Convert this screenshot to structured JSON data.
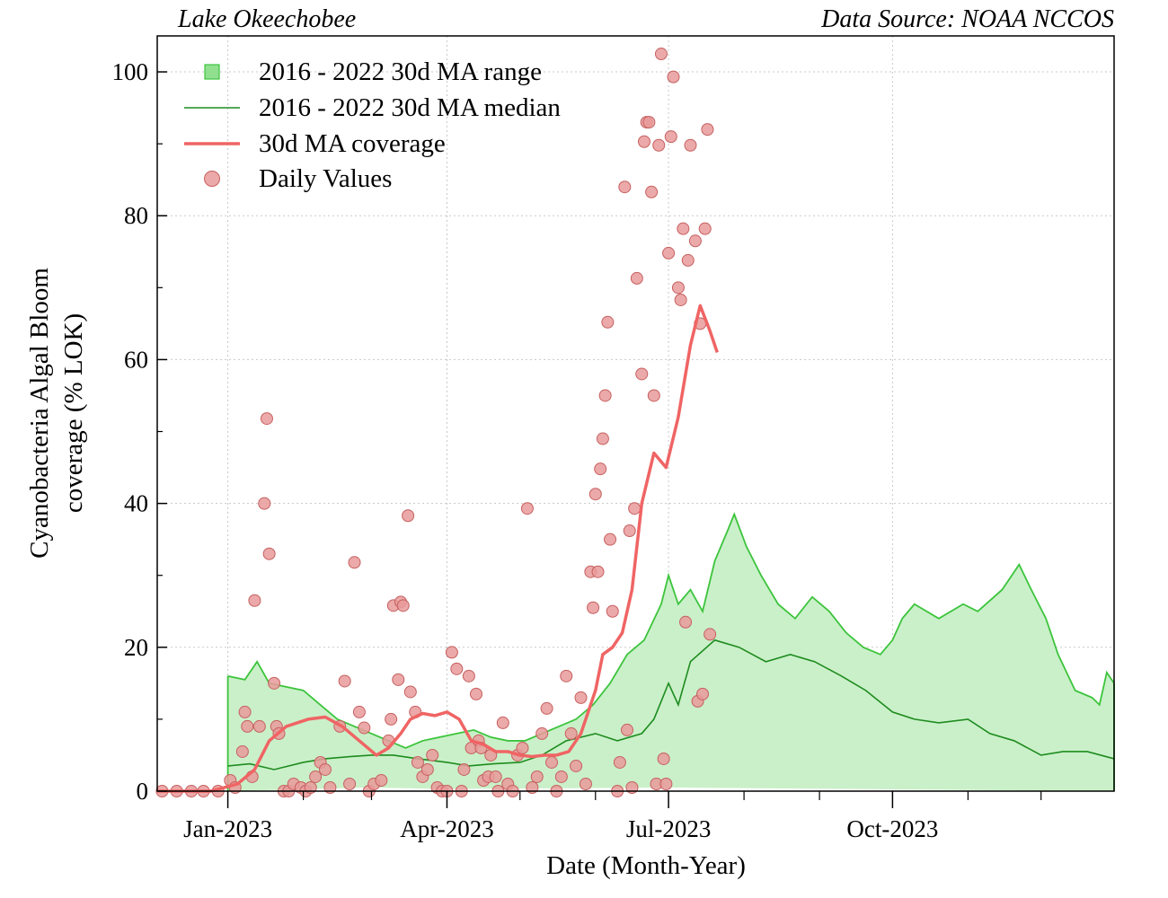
{
  "header": {
    "left": "Lake Okeechobee",
    "right": "Data Source: NOAA NCCOS"
  },
  "chart_data": {
    "type": "line",
    "xlabel": "Date (Month-Year)",
    "ylabel_line1": "Cyanobacteria Algal Bloom",
    "ylabel_line2": "coverage (% LOK)",
    "xlim": [
      "2022-12-03",
      "2023-12-31"
    ],
    "ylim": [
      0,
      105
    ],
    "yticks": [
      0,
      20,
      40,
      60,
      80,
      100
    ],
    "yticks_minor": [
      10,
      30,
      50,
      70,
      90
    ],
    "xticks": [
      {
        "date": "2023-01-01",
        "label": "Jan-2023"
      },
      {
        "date": "2023-04-01",
        "label": "Apr-2023"
      },
      {
        "date": "2023-07-01",
        "label": "Jul-2023"
      },
      {
        "date": "2023-10-01",
        "label": "Oct-2023"
      }
    ],
    "xticks_minor": [
      "2023-02-01",
      "2023-03-01",
      "2023-05-01",
      "2023-06-01",
      "2023-08-01",
      "2023-09-01",
      "2023-11-01",
      "2023-12-01"
    ],
    "grid": true,
    "legend_position": "top-left",
    "colors": {
      "range_fill": "#caf0c9",
      "range_edge": "#3cc43c",
      "median": "#1e8c1e",
      "ma_line": "#f06464",
      "points_fill": "#e99a9a",
      "points_edge": "#c66060"
    },
    "legend": [
      {
        "label": "2016 - 2022 30d MA range",
        "kind": "square"
      },
      {
        "label": "2016 - 2022 30d MA median",
        "kind": "thin-line"
      },
      {
        "label": "30d MA coverage",
        "kind": "thick-line"
      },
      {
        "label": "Daily Values",
        "kind": "circle"
      }
    ],
    "range_upper": [
      [
        "2023-01-01",
        16
      ],
      [
        "2023-01-08",
        15.5
      ],
      [
        "2023-01-13",
        18
      ],
      [
        "2023-01-18",
        15
      ],
      [
        "2023-01-25",
        14.5
      ],
      [
        "2023-02-01",
        14
      ],
      [
        "2023-02-08",
        12
      ],
      [
        "2023-02-15",
        10
      ],
      [
        "2023-02-22",
        9
      ],
      [
        "2023-03-01",
        8
      ],
      [
        "2023-03-08",
        7
      ],
      [
        "2023-03-15",
        6
      ],
      [
        "2023-03-22",
        7
      ],
      [
        "2023-03-29",
        7.5
      ],
      [
        "2023-04-05",
        8
      ],
      [
        "2023-04-12",
        8.5
      ],
      [
        "2023-04-19",
        7.5
      ],
      [
        "2023-04-26",
        7
      ],
      [
        "2023-05-03",
        7
      ],
      [
        "2023-05-10",
        8
      ],
      [
        "2023-05-17",
        9
      ],
      [
        "2023-05-24",
        10
      ],
      [
        "2023-05-31",
        12
      ],
      [
        "2023-06-07",
        15
      ],
      [
        "2023-06-14",
        19
      ],
      [
        "2023-06-21",
        21
      ],
      [
        "2023-06-28",
        26
      ],
      [
        "2023-07-01",
        30
      ],
      [
        "2023-07-05",
        26
      ],
      [
        "2023-07-10",
        28
      ],
      [
        "2023-07-15",
        25
      ],
      [
        "2023-07-20",
        32
      ],
      [
        "2023-07-25",
        36
      ],
      [
        "2023-07-28",
        38.5
      ],
      [
        "2023-08-02",
        34
      ],
      [
        "2023-08-08",
        30
      ],
      [
        "2023-08-15",
        26
      ],
      [
        "2023-08-22",
        24
      ],
      [
        "2023-08-29",
        27
      ],
      [
        "2023-09-05",
        25
      ],
      [
        "2023-09-12",
        22
      ],
      [
        "2023-09-19",
        20
      ],
      [
        "2023-09-26",
        19
      ],
      [
        "2023-10-01",
        21
      ],
      [
        "2023-10-05",
        24
      ],
      [
        "2023-10-10",
        26
      ],
      [
        "2023-10-20",
        24
      ],
      [
        "2023-10-30",
        26
      ],
      [
        "2023-11-05",
        25
      ],
      [
        "2023-11-15",
        28
      ],
      [
        "2023-11-22",
        31.5
      ],
      [
        "2023-11-27",
        28
      ],
      [
        "2023-12-03",
        24
      ],
      [
        "2023-12-08",
        19
      ],
      [
        "2023-12-15",
        14
      ],
      [
        "2023-12-22",
        13
      ],
      [
        "2023-12-25",
        12
      ],
      [
        "2023-12-28",
        16.5
      ],
      [
        "2023-12-31",
        15
      ]
    ],
    "range_lower": [
      [
        "2023-01-01",
        0
      ],
      [
        "2023-03-01",
        0.5
      ],
      [
        "2023-04-01",
        0.3
      ],
      [
        "2023-07-01",
        0.5
      ],
      [
        "2023-12-31",
        0
      ]
    ],
    "median": [
      [
        "2023-01-01",
        3.5
      ],
      [
        "2023-01-10",
        3.8
      ],
      [
        "2023-01-20",
        3
      ],
      [
        "2023-02-01",
        4
      ],
      [
        "2023-02-10",
        4.5
      ],
      [
        "2023-02-20",
        4.8
      ],
      [
        "2023-03-01",
        5
      ],
      [
        "2023-03-10",
        5
      ],
      [
        "2023-03-20",
        4.5
      ],
      [
        "2023-04-01",
        4
      ],
      [
        "2023-04-10",
        3.5
      ],
      [
        "2023-04-20",
        3.8
      ],
      [
        "2023-05-01",
        4
      ],
      [
        "2023-05-10",
        5
      ],
      [
        "2023-05-20",
        7
      ],
      [
        "2023-06-01",
        8
      ],
      [
        "2023-06-10",
        7
      ],
      [
        "2023-06-20",
        8
      ],
      [
        "2023-06-25",
        10
      ],
      [
        "2023-07-01",
        15
      ],
      [
        "2023-07-05",
        12
      ],
      [
        "2023-07-10",
        18
      ],
      [
        "2023-07-20",
        21
      ],
      [
        "2023-07-30",
        20
      ],
      [
        "2023-08-10",
        18
      ],
      [
        "2023-08-20",
        19
      ],
      [
        "2023-08-30",
        18
      ],
      [
        "2023-09-10",
        16
      ],
      [
        "2023-09-20",
        14
      ],
      [
        "2023-10-01",
        11
      ],
      [
        "2023-10-10",
        10
      ],
      [
        "2023-10-20",
        9.5
      ],
      [
        "2023-11-01",
        10
      ],
      [
        "2023-11-10",
        8
      ],
      [
        "2023-11-20",
        7
      ],
      [
        "2023-12-01",
        5
      ],
      [
        "2023-12-10",
        5.5
      ],
      [
        "2023-12-20",
        5.5
      ],
      [
        "2023-12-31",
        4.5
      ]
    ],
    "ma_line": [
      [
        "2022-12-03",
        0
      ],
      [
        "2022-12-25",
        0
      ],
      [
        "2023-01-05",
        1
      ],
      [
        "2023-01-12",
        3
      ],
      [
        "2023-01-18",
        7
      ],
      [
        "2023-01-25",
        9
      ],
      [
        "2023-02-03",
        10
      ],
      [
        "2023-02-10",
        10.3
      ],
      [
        "2023-02-17",
        9
      ],
      [
        "2023-02-24",
        7
      ],
      [
        "2023-03-03",
        5
      ],
      [
        "2023-03-08",
        6
      ],
      [
        "2023-03-13",
        8
      ],
      [
        "2023-03-17",
        10
      ],
      [
        "2023-03-22",
        10.8
      ],
      [
        "2023-03-27",
        10.5
      ],
      [
        "2023-04-01",
        11
      ],
      [
        "2023-04-06",
        10
      ],
      [
        "2023-04-11",
        7
      ],
      [
        "2023-04-16",
        6.5
      ],
      [
        "2023-04-21",
        5.5
      ],
      [
        "2023-04-26",
        5.5
      ],
      [
        "2023-05-01",
        5
      ],
      [
        "2023-05-06",
        4.8
      ],
      [
        "2023-05-11",
        5
      ],
      [
        "2023-05-16",
        5
      ],
      [
        "2023-05-21",
        5.5
      ],
      [
        "2023-05-26",
        8
      ],
      [
        "2023-06-01",
        14
      ],
      [
        "2023-06-04",
        19
      ],
      [
        "2023-06-08",
        20
      ],
      [
        "2023-06-12",
        22
      ],
      [
        "2023-06-16",
        28
      ],
      [
        "2023-06-20",
        40
      ],
      [
        "2023-06-25",
        47
      ],
      [
        "2023-06-30",
        45
      ],
      [
        "2023-07-05",
        52
      ],
      [
        "2023-07-10",
        62
      ],
      [
        "2023-07-14",
        67.5
      ],
      [
        "2023-07-18",
        64
      ],
      [
        "2023-07-21",
        61
      ]
    ],
    "daily_values": [
      [
        "2022-12-05",
        0
      ],
      [
        "2022-12-11",
        0
      ],
      [
        "2022-12-17",
        0
      ],
      [
        "2022-12-22",
        0
      ],
      [
        "2022-12-28",
        0
      ],
      [
        "2023-01-02",
        1.5
      ],
      [
        "2023-01-04",
        0.5
      ],
      [
        "2023-01-07",
        5.5
      ],
      [
        "2023-01-08",
        11
      ],
      [
        "2023-01-09",
        9
      ],
      [
        "2023-01-11",
        2
      ],
      [
        "2023-01-12",
        26.5
      ],
      [
        "2023-01-14",
        9
      ],
      [
        "2023-01-16",
        40
      ],
      [
        "2023-01-17",
        51.8
      ],
      [
        "2023-01-18",
        33
      ],
      [
        "2023-01-20",
        15
      ],
      [
        "2023-01-21",
        9
      ],
      [
        "2023-01-22",
        8
      ],
      [
        "2023-01-24",
        0
      ],
      [
        "2023-01-26",
        0
      ],
      [
        "2023-01-28",
        1
      ],
      [
        "2023-01-31",
        0.5
      ],
      [
        "2023-02-02",
        0
      ],
      [
        "2023-02-04",
        0.5
      ],
      [
        "2023-02-06",
        2
      ],
      [
        "2023-02-08",
        4
      ],
      [
        "2023-02-10",
        3
      ],
      [
        "2023-02-12",
        0.5
      ],
      [
        "2023-02-16",
        9
      ],
      [
        "2023-02-18",
        15.3
      ],
      [
        "2023-02-20",
        1
      ],
      [
        "2023-02-22",
        31.8
      ],
      [
        "2023-02-24",
        11
      ],
      [
        "2023-02-26",
        8.8
      ],
      [
        "2023-02-28",
        0
      ],
      [
        "2023-03-02",
        1
      ],
      [
        "2023-03-05",
        1.5
      ],
      [
        "2023-03-08",
        7
      ],
      [
        "2023-03-09",
        10
      ],
      [
        "2023-03-10",
        25.8
      ],
      [
        "2023-03-12",
        15.5
      ],
      [
        "2023-03-13",
        26.3
      ],
      [
        "2023-03-14",
        25.8
      ],
      [
        "2023-03-16",
        38.3
      ],
      [
        "2023-03-17",
        13.8
      ],
      [
        "2023-03-19",
        11
      ],
      [
        "2023-03-20",
        4
      ],
      [
        "2023-03-22",
        2
      ],
      [
        "2023-03-24",
        3
      ],
      [
        "2023-03-26",
        5
      ],
      [
        "2023-03-28",
        0.5
      ],
      [
        "2023-03-30",
        0
      ],
      [
        "2023-04-01",
        0
      ],
      [
        "2023-04-03",
        19.3
      ],
      [
        "2023-04-05",
        17
      ],
      [
        "2023-04-07",
        0
      ],
      [
        "2023-04-08",
        3
      ],
      [
        "2023-04-10",
        16
      ],
      [
        "2023-04-11",
        6
      ],
      [
        "2023-04-13",
        13.5
      ],
      [
        "2023-04-14",
        7
      ],
      [
        "2023-04-15",
        6
      ],
      [
        "2023-04-16",
        1.5
      ],
      [
        "2023-04-18",
        2
      ],
      [
        "2023-04-19",
        5
      ],
      [
        "2023-04-21",
        2
      ],
      [
        "2023-04-22",
        0
      ],
      [
        "2023-04-24",
        9.5
      ],
      [
        "2023-04-26",
        1
      ],
      [
        "2023-04-28",
        0
      ],
      [
        "2023-04-30",
        5
      ],
      [
        "2023-05-02",
        6
      ],
      [
        "2023-05-04",
        39.3
      ],
      [
        "2023-05-06",
        0.5
      ],
      [
        "2023-05-08",
        2
      ],
      [
        "2023-05-10",
        8
      ],
      [
        "2023-05-12",
        11.5
      ],
      [
        "2023-05-14",
        4
      ],
      [
        "2023-05-16",
        0
      ],
      [
        "2023-05-18",
        2
      ],
      [
        "2023-05-20",
        16
      ],
      [
        "2023-05-22",
        8
      ],
      [
        "2023-05-24",
        3.5
      ],
      [
        "2023-05-26",
        13
      ],
      [
        "2023-05-28",
        1
      ],
      [
        "2023-05-30",
        30.5
      ],
      [
        "2023-05-31",
        25.5
      ],
      [
        "2023-06-01",
        41.3
      ],
      [
        "2023-06-02",
        30.5
      ],
      [
        "2023-06-03",
        44.8
      ],
      [
        "2023-06-04",
        49
      ],
      [
        "2023-06-05",
        55
      ],
      [
        "2023-06-06",
        65.2
      ],
      [
        "2023-06-07",
        35
      ],
      [
        "2023-06-08",
        25
      ],
      [
        "2023-06-10",
        0
      ],
      [
        "2023-06-11",
        4
      ],
      [
        "2023-06-13",
        84
      ],
      [
        "2023-06-14",
        8.5
      ],
      [
        "2023-06-15",
        36.2
      ],
      [
        "2023-06-16",
        0.5
      ],
      [
        "2023-06-17",
        39.3
      ],
      [
        "2023-06-18",
        71.3
      ],
      [
        "2023-06-20",
        58
      ],
      [
        "2023-06-21",
        90.3
      ],
      [
        "2023-06-22",
        93
      ],
      [
        "2023-06-23",
        93
      ],
      [
        "2023-06-24",
        83.3
      ],
      [
        "2023-06-25",
        55
      ],
      [
        "2023-06-26",
        1
      ],
      [
        "2023-06-27",
        89.8
      ],
      [
        "2023-06-28",
        102.5
      ],
      [
        "2023-06-29",
        4.5
      ],
      [
        "2023-06-30",
        1
      ],
      [
        "2023-07-01",
        74.8
      ],
      [
        "2023-07-02",
        91
      ],
      [
        "2023-07-03",
        99.3
      ],
      [
        "2023-07-05",
        70
      ],
      [
        "2023-07-06",
        68.3
      ],
      [
        "2023-07-07",
        78.2
      ],
      [
        "2023-07-08",
        23.5
      ],
      [
        "2023-07-09",
        73.8
      ],
      [
        "2023-07-10",
        89.8
      ],
      [
        "2023-07-12",
        76.5
      ],
      [
        "2023-07-13",
        12.5
      ],
      [
        "2023-07-14",
        65
      ],
      [
        "2023-07-15",
        13.5
      ],
      [
        "2023-07-16",
        78.2
      ],
      [
        "2023-07-17",
        92
      ],
      [
        "2023-07-18",
        21.8
      ]
    ]
  }
}
